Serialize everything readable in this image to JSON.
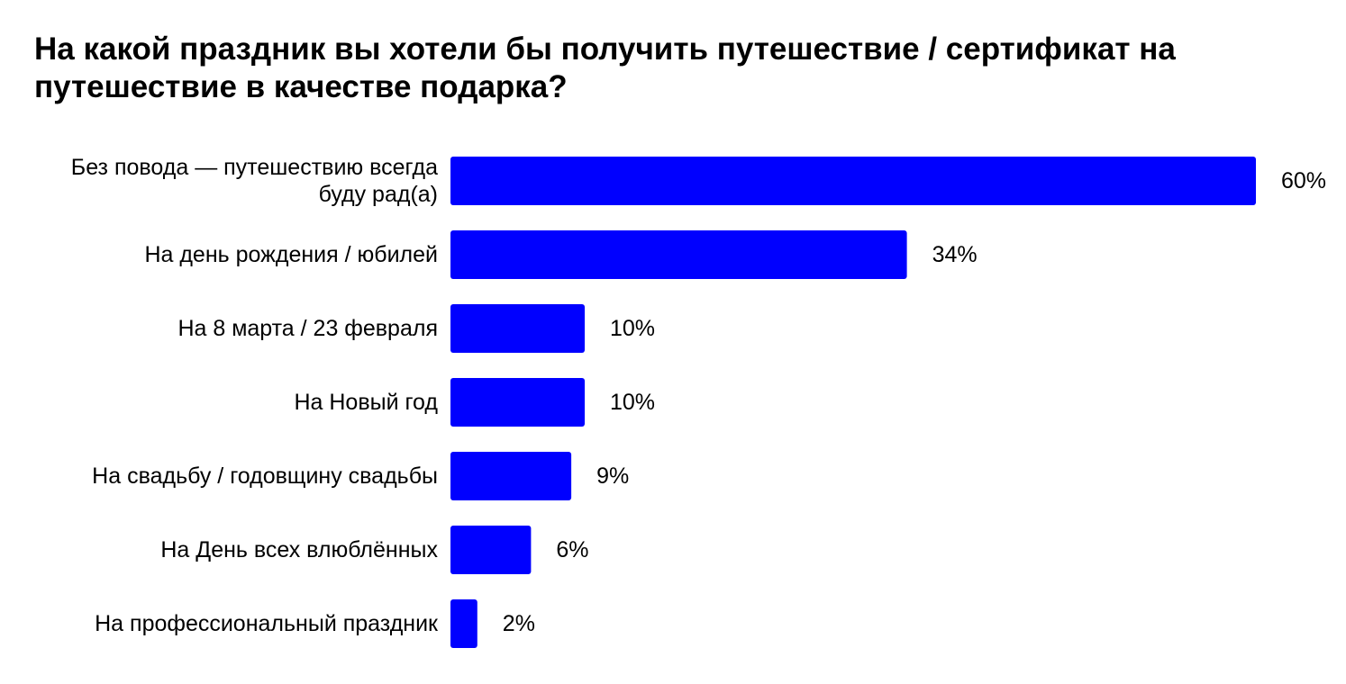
{
  "chart_data": {
    "type": "bar",
    "orientation": "horizontal",
    "title": "На какой праздник вы хотели бы получить путешествие / сертификат на путешествие в качестве подарка?",
    "categories": [
      [
        "Без повода — путешествию всегда",
        "буду рад(а)"
      ],
      [
        "На день рождения / юбилей"
      ],
      [
        "На 8 марта / 23 февраля"
      ],
      [
        "На Новый год"
      ],
      [
        "На свадьбу / годовщину свадьбы"
      ],
      [
        "На День всех влюблённых"
      ],
      [
        "На профессиональный праздник"
      ]
    ],
    "values": [
      60,
      34,
      10,
      10,
      9,
      6,
      2
    ],
    "value_labels": [
      "60%",
      "34%",
      "10%",
      "10%",
      "9%",
      "6%",
      "2%"
    ],
    "unit": "%",
    "xlim": [
      0,
      60
    ],
    "grid": false,
    "legend": "none",
    "bar_color": "#0000ff"
  }
}
